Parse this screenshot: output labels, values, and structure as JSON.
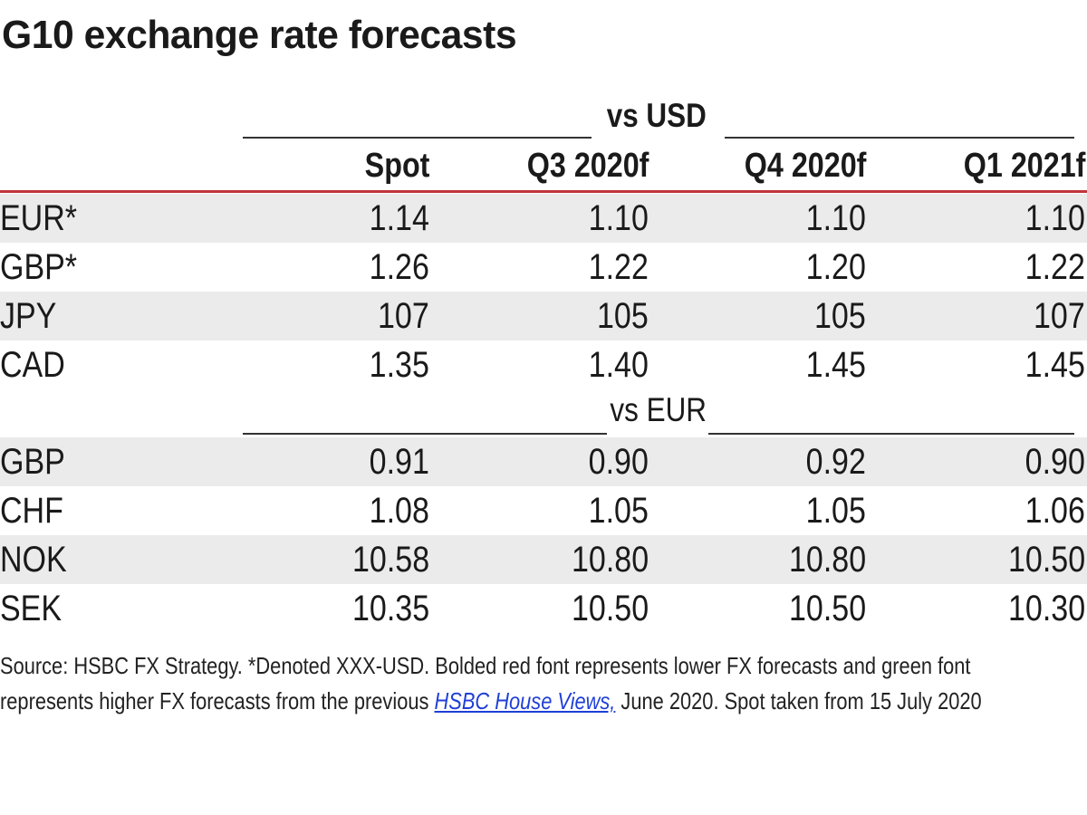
{
  "title": "G10 exchange rate forecasts",
  "groups": {
    "usd": "vs USD",
    "eur": "vs EUR"
  },
  "columns": [
    "Spot",
    "Q3 2020f",
    "Q4 2020f",
    "Q1 2021f"
  ],
  "usd_rows": [
    {
      "ccy": "EUR*",
      "values": [
        "1.14",
        "1.10",
        "1.10",
        "1.10"
      ]
    },
    {
      "ccy": "GBP*",
      "values": [
        "1.26",
        "1.22",
        "1.20",
        "1.22"
      ]
    },
    {
      "ccy": "JPY",
      "values": [
        "107",
        "105",
        "105",
        "107"
      ]
    },
    {
      "ccy": "CAD",
      "values": [
        "1.35",
        "1.40",
        "1.45",
        "1.45"
      ]
    }
  ],
  "eur_rows": [
    {
      "ccy": "GBP",
      "values": [
        "0.91",
        "0.90",
        "0.92",
        "0.90"
      ]
    },
    {
      "ccy": "CHF",
      "values": [
        "1.08",
        "1.05",
        "1.05",
        "1.06"
      ]
    },
    {
      "ccy": "NOK",
      "values": [
        "10.58",
        "10.80",
        "10.80",
        "10.50"
      ]
    },
    {
      "ccy": "SEK",
      "values": [
        "10.35",
        "10.50",
        "10.50",
        "10.30"
      ]
    }
  ],
  "footnote": {
    "line1": "Source: HSBC FX Strategy. *Denoted XXX-USD. Bolded red font represents lower FX forecasts and green font",
    "line2_before": "represents higher FX forecasts from the previous ",
    "link": "HSBC House Views,",
    "line2_after": " June 2020. Spot taken from 15 July 2020"
  },
  "colors": {
    "rule": "#c0343b",
    "shade": "#ebebeb",
    "link": "#1f3fd6"
  }
}
